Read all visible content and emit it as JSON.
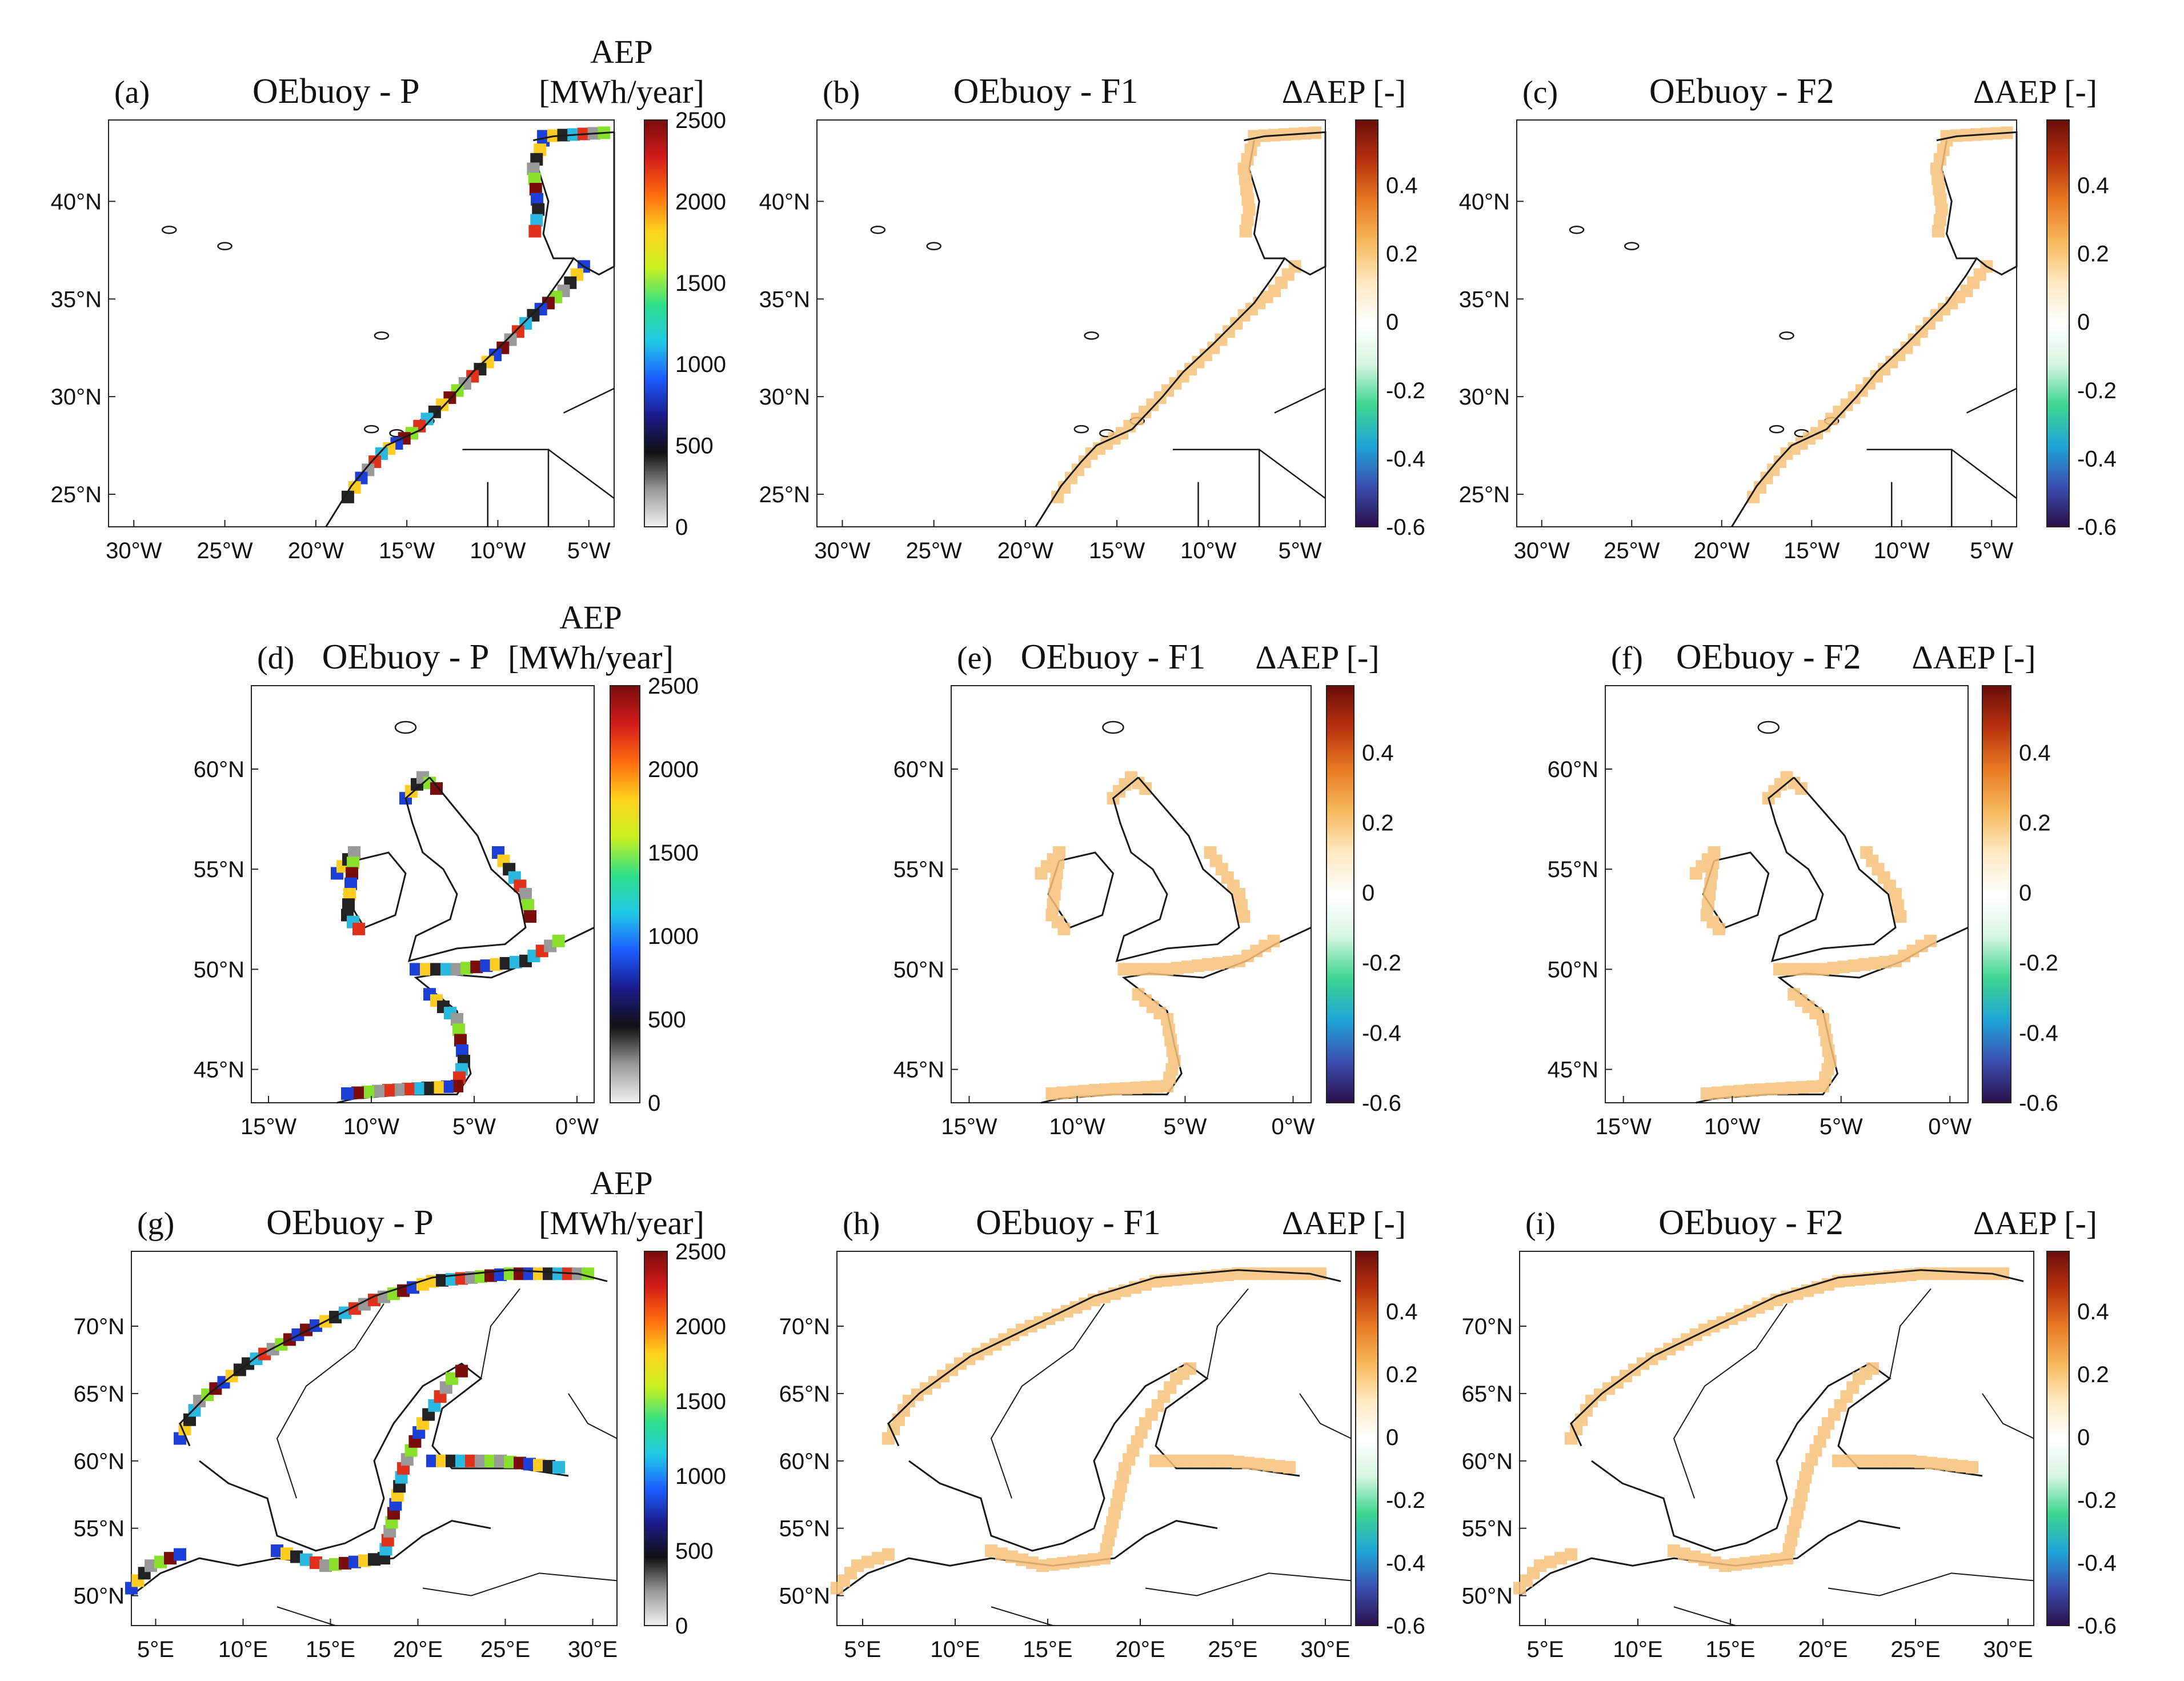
{
  "figure": {
    "colors": {
      "aep": [
        "#f2f2f2",
        "#9a9a9a",
        "#111111",
        "#1a1a8a",
        "#1c5cff",
        "#20c8e8",
        "#2ee08a",
        "#c8f01e",
        "#ffd21e",
        "#ff6a0e",
        "#d21a1a",
        "#7a0c0c"
      ],
      "delta": [
        "#2a0f4a",
        "#3b4fb2",
        "#1ea6d8",
        "#3ed68e",
        "#d8f6e2",
        "#ffffff",
        "#ffe9c2",
        "#f7b85c",
        "#e87a22",
        "#b8320e",
        "#6a0d0a"
      ],
      "coast": "#1a1a1a",
      "band_aep": [
        "#1c3fd8",
        "#28b8e0",
        "#88e02a",
        "#ffcc22",
        "#e0321a",
        "#7a0c0c",
        "#222222",
        "#999999"
      ],
      "band_delta": "#f6c27a"
    },
    "panels": [
      {
        "id": "a",
        "label": "(a)",
        "title": "OEbuoy - P",
        "cbar_title": [
          "AEP",
          "[MWh/year]"
        ],
        "cbar_ticks": [
          "2500",
          "2000",
          "1500",
          "1000",
          "500",
          "0"
        ],
        "lat_ticks": [
          "40°N",
          "35°N",
          "30°N",
          "25°N"
        ],
        "lon_ticks": [
          "30°W",
          "25°W",
          "20°W",
          "15°W",
          "10°W",
          "5°W"
        ]
      },
      {
        "id": "b",
        "label": "(b)",
        "title": "OEbuoy - F1",
        "cbar_title": [
          "ΔAEP [-]"
        ],
        "cbar_ticks": [
          "0.4",
          "0.2",
          "0",
          "-0.2",
          "-0.4",
          "-0.6"
        ],
        "lat_ticks": [
          "40°N",
          "35°N",
          "30°N",
          "25°N"
        ],
        "lon_ticks": [
          "30°W",
          "25°W",
          "20°W",
          "15°W",
          "10°W",
          "5°W"
        ]
      },
      {
        "id": "c",
        "label": "(c)",
        "title": "OEbuoy - F2",
        "cbar_title": [
          "ΔAEP [-]"
        ],
        "cbar_ticks": [
          "0.4",
          "0.2",
          "0",
          "-0.2",
          "-0.4",
          "-0.6"
        ],
        "lat_ticks": [
          "40°N",
          "35°N",
          "30°N",
          "25°N"
        ],
        "lon_ticks": [
          "30°W",
          "25°W",
          "20°W",
          "15°W",
          "10°W",
          "5°W"
        ]
      },
      {
        "id": "d",
        "label": "(d)",
        "title": "OEbuoy - P",
        "cbar_title": [
          "AEP",
          "[MWh/year]"
        ],
        "cbar_ticks": [
          "2500",
          "2000",
          "1500",
          "1000",
          "500",
          "0"
        ],
        "lat_ticks": [
          "60°N",
          "55°N",
          "50°N",
          "45°N"
        ],
        "lon_ticks": [
          "15°W",
          "10°W",
          "5°W",
          "0°W"
        ]
      },
      {
        "id": "e",
        "label": "(e)",
        "title": "OEbuoy - F1",
        "cbar_title": [
          "ΔAEP [-]"
        ],
        "cbar_ticks": [
          "0.4",
          "0.2",
          "0",
          "-0.2",
          "-0.4",
          "-0.6"
        ],
        "lat_ticks": [
          "60°N",
          "55°N",
          "50°N",
          "45°N"
        ],
        "lon_ticks": [
          "15°W",
          "10°W",
          "5°W",
          "0°W"
        ]
      },
      {
        "id": "f",
        "label": "(f)",
        "title": "OEbuoy - F2",
        "cbar_title": [
          "ΔAEP [-]"
        ],
        "cbar_ticks": [
          "0.4",
          "0.2",
          "0",
          "-0.2",
          "-0.4",
          "-0.6"
        ],
        "lat_ticks": [
          "60°N",
          "55°N",
          "50°N",
          "45°N"
        ],
        "lon_ticks": [
          "15°W",
          "10°W",
          "5°W",
          "0°W"
        ]
      },
      {
        "id": "g",
        "label": "(g)",
        "title": "OEbuoy - P",
        "cbar_title": [
          "AEP",
          "[MWh/year]"
        ],
        "cbar_ticks": [
          "2500",
          "2000",
          "1500",
          "1000",
          "500",
          "0"
        ],
        "lat_ticks": [
          "70°N",
          "65°N",
          "60°N",
          "55°N",
          "50°N"
        ],
        "lon_ticks": [
          "5°E",
          "10°E",
          "15°E",
          "20°E",
          "25°E",
          "30°E"
        ]
      },
      {
        "id": "h",
        "label": "(h)",
        "title": "OEbuoy - F1",
        "cbar_title": [
          "ΔAEP [-]"
        ],
        "cbar_ticks": [
          "0.4",
          "0.2",
          "0",
          "-0.2",
          "-0.4",
          "-0.6"
        ],
        "lat_ticks": [
          "70°N",
          "65°N",
          "60°N",
          "55°N",
          "50°N"
        ],
        "lon_ticks": [
          "5°E",
          "10°E",
          "15°E",
          "20°E",
          "25°E",
          "30°E"
        ]
      },
      {
        "id": "i",
        "label": "(i)",
        "title": "OEbuoy - F2",
        "cbar_title": [
          "ΔAEP [-]"
        ],
        "cbar_ticks": [
          "0.4",
          "0.2",
          "0",
          "-0.2",
          "-0.4",
          "-0.6"
        ],
        "lat_ticks": [
          "70°N",
          "65°N",
          "60°N",
          "55°N",
          "50°N"
        ],
        "lon_ticks": [
          "5°E",
          "10°E",
          "15°E",
          "20°E",
          "25°E",
          "30°E"
        ]
      }
    ]
  }
}
